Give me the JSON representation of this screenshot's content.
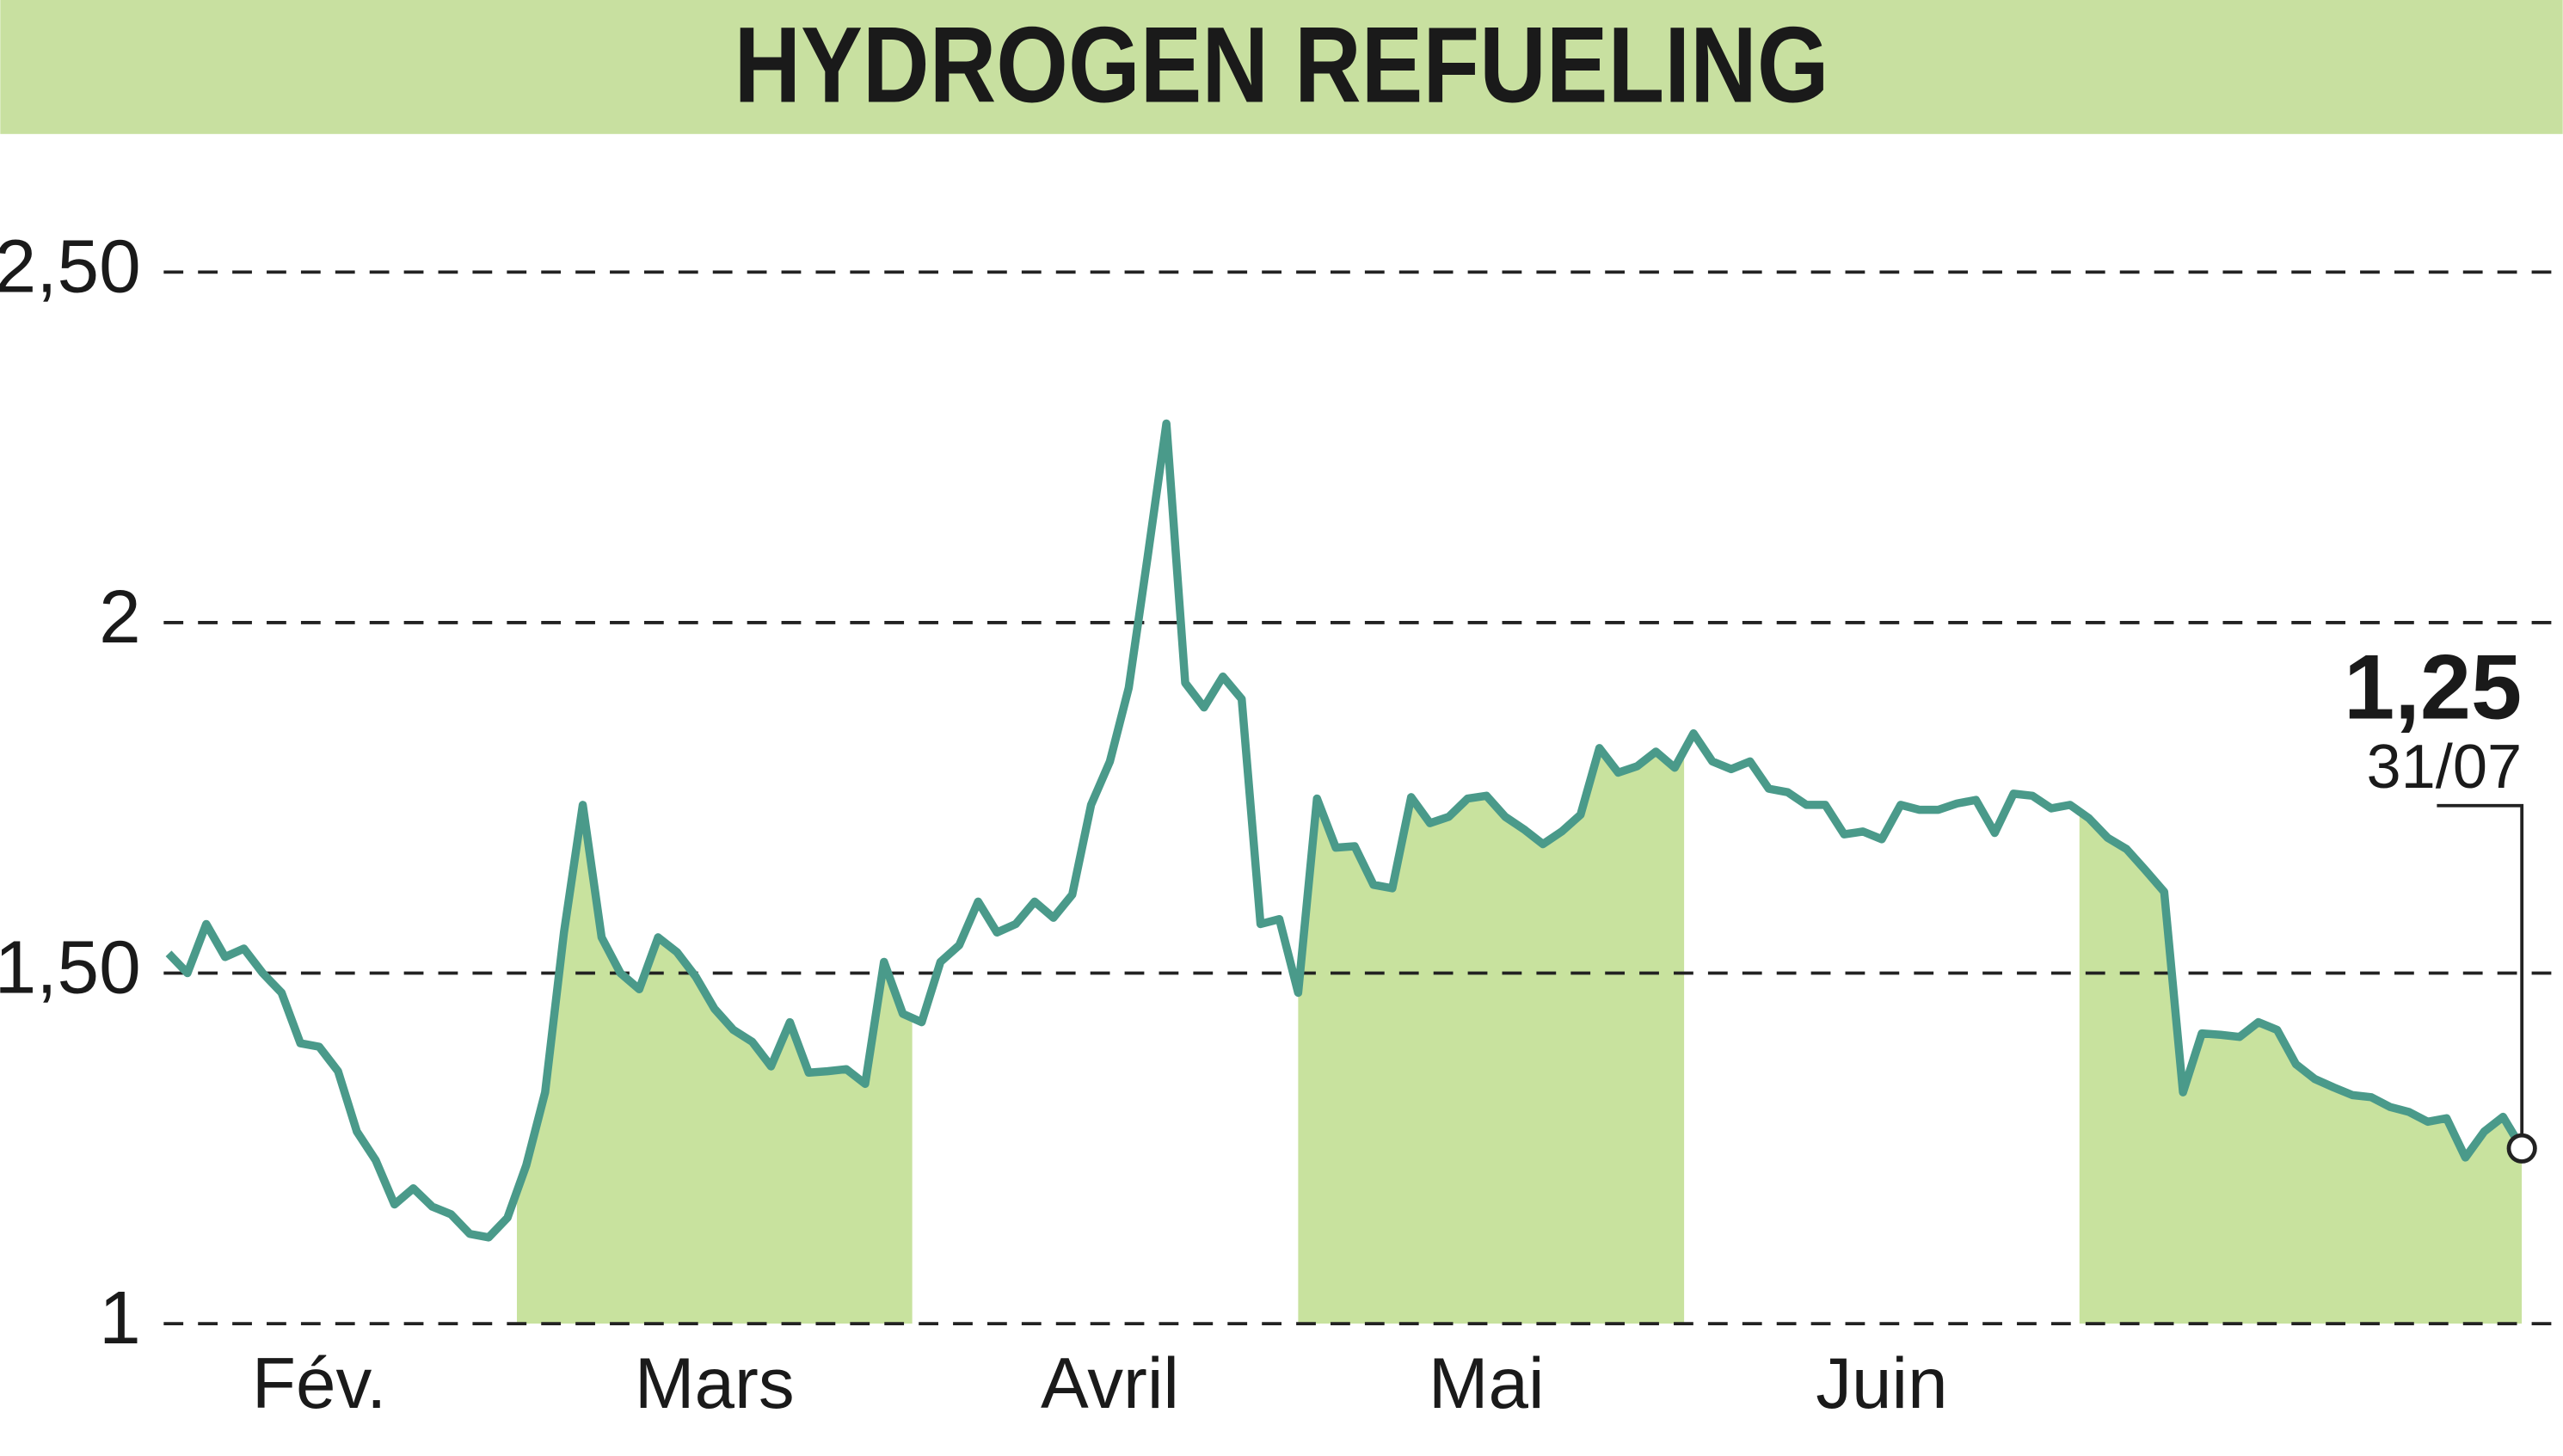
{
  "chart_data": {
    "type": "line",
    "title": "HYDROGEN REFUELING",
    "categories": [
      null,
      null,
      null,
      null,
      null,
      null,
      null,
      null,
      "Fév.",
      null,
      null,
      null,
      null,
      null,
      null,
      null,
      null,
      null,
      null,
      null,
      null,
      null,
      null,
      null,
      null,
      null,
      null,
      null,
      null,
      "Mars",
      null,
      null,
      null,
      null,
      null,
      null,
      null,
      null,
      null,
      null,
      null,
      null,
      null,
      null,
      null,
      null,
      null,
      null,
      null,
      null,
      "Avril",
      null,
      null,
      null,
      null,
      null,
      null,
      null,
      null,
      null,
      null,
      null,
      null,
      null,
      null,
      null,
      null,
      null,
      null,
      null,
      "Mai",
      null,
      null,
      null,
      null,
      null,
      null,
      null,
      null,
      null,
      null,
      null,
      null,
      null,
      null,
      null,
      null,
      null,
      null,
      null,
      null,
      "Juin",
      null,
      null,
      null,
      null,
      null,
      null,
      null,
      null,
      null,
      null,
      null,
      null,
      null,
      null,
      null,
      null,
      null,
      null,
      null,
      null,
      null,
      null,
      null,
      null,
      null,
      null,
      null,
      null,
      null,
      null,
      null,
      null,
      null,
      null
    ],
    "series": [
      {
        "color": "#4a9a8a",
        "values": [
          1.528,
          1.5,
          1.57,
          1.523,
          1.535,
          1.5,
          1.472,
          1.4,
          1.395,
          1.36,
          1.274,
          1.233,
          1.17,
          1.193,
          1.167,
          1.156,
          1.128,
          1.123,
          1.151,
          1.226,
          1.33,
          1.558,
          1.74,
          1.551,
          1.5,
          1.477,
          1.551,
          1.53,
          1.495,
          1.449,
          1.419,
          1.402,
          1.367,
          1.43,
          1.358,
          1.36,
          1.363,
          1.342,
          1.516,
          1.442,
          1.43,
          1.516,
          1.54,
          1.602,
          1.558,
          1.57,
          1.602,
          1.579,
          1.612,
          1.74,
          1.802,
          1.907,
          2.093,
          2.284,
          1.914,
          1.879,
          1.923,
          1.891,
          1.57,
          1.577,
          1.472,
          1.749,
          1.679,
          1.681,
          1.626,
          1.621,
          1.751,
          1.714,
          1.723,
          1.749,
          1.753,
          1.723,
          1.705,
          1.684,
          1.702,
          1.726,
          1.821,
          1.786,
          1.795,
          1.816,
          1.793,
          1.842,
          1.802,
          1.791,
          1.802,
          1.763,
          1.758,
          1.74,
          1.74,
          1.698,
          1.702,
          1.691,
          1.74,
          1.733,
          1.733,
          1.742,
          1.747,
          1.7,
          1.756,
          1.753,
          1.735,
          1.74,
          1.721,
          1.693,
          1.677,
          1.647,
          1.616,
          1.33,
          1.414,
          1.412,
          1.409,
          1.43,
          1.419,
          1.37,
          1.349,
          1.337,
          1.326,
          1.323,
          1.309,
          1.302,
          1.288,
          1.293,
          1.237,
          1.274,
          1.295,
          1.25
        ]
      }
    ],
    "shade_color": "#c8e29e",
    "ylim": [
      1,
      2.69
    ],
    "yticks": [
      1,
      {
        "value": 1.5,
        "label": "1,50"
      },
      2,
      {
        "value": 2.5,
        "label": "2,50"
      }
    ],
    "grid": true,
    "annotation": {
      "label": "1,25",
      "date": "31/07"
    }
  }
}
